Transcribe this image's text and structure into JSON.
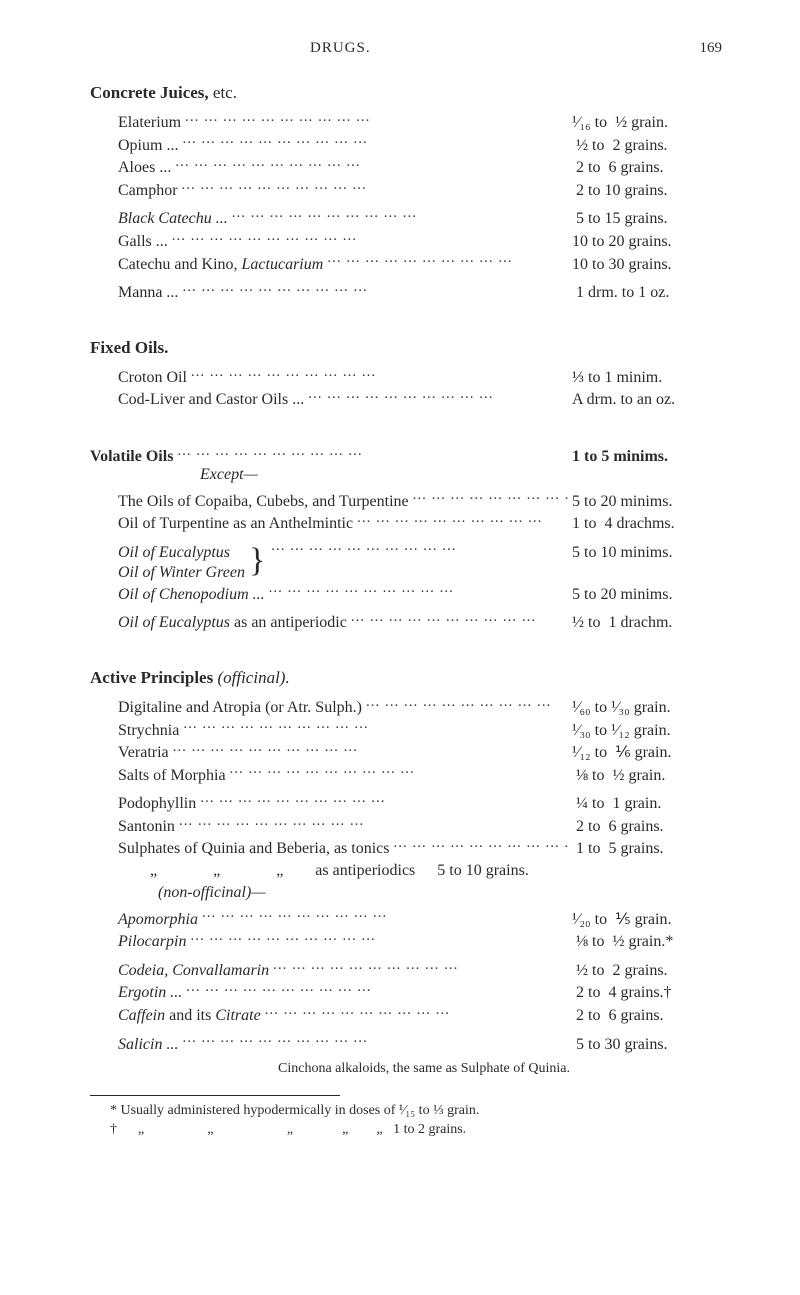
{
  "header": {
    "title": "DRUGS.",
    "page_no": "169"
  },
  "s1": {
    "head_bold": "Concrete Juices,",
    "head_rest": " etc.",
    "r1": {
      "l": "Elaterium",
      "d": "¹⁄₁₆ to  ½ grain."
    },
    "r2": {
      "l": "Opium ...",
      "d": " ½ to  2 grains."
    },
    "r3": {
      "l": "Aloes ...",
      "d": " 2 to  6 grains."
    },
    "r4": {
      "l": "Camphor",
      "d": " 2 to 10 grains."
    },
    "r5": {
      "l": "Black Catechu ...",
      "d": " 5 to 15 grains."
    },
    "r6": {
      "l": "Galls ...",
      "d": "10 to 20 grains."
    },
    "r7": {
      "l": "Catechu and Kino, Lactucarium",
      "d": "10 to 30 grains."
    },
    "r8": {
      "l": "Manna ...",
      "d": " 1 drm. to 1 oz."
    }
  },
  "s2": {
    "head": "Fixed Oils.",
    "r1": {
      "l": "Croton Oil",
      "d": "⅓ to 1 minim."
    },
    "r2": {
      "l": "Cod-Liver and Castor Oils ...",
      "d": "A drm. to an oz."
    }
  },
  "s3": {
    "head_bold": "Volatile Oils",
    "head_dose": "1 to 5 minims.",
    "except": "Except—",
    "r1": {
      "l": "The Oils of Copaiba, Cubebs, and Turpentine",
      "d": "5 to 20 minims."
    },
    "r2": {
      "l": "Oil of Turpentine as an Anthelmintic",
      "d": "1 to  4 drachms."
    },
    "brace1": "Oil of Eucalyptus",
    "brace2": "Oil of Winter Green",
    "brace_dose": "5 to 10 minims.",
    "r3": {
      "l": "Oil of Chenopodium ...",
      "d": "5 to 20 minims."
    },
    "r4": {
      "l": "Oil of Eucalyptus as an antiperiodic",
      "d": "½ to  1 drachm."
    }
  },
  "s4": {
    "head_bold": "Active Principles",
    "head_rest": " (officinal).",
    "r1": {
      "l": "Digitaline and Atropia (or Atr. Sulph.)",
      "d": "¹⁄₆₀ to ¹⁄₃₀ grain."
    },
    "r2": {
      "l": "Strychnia",
      "d": "¹⁄₃₀ to ¹⁄₁₂ grain."
    },
    "r3": {
      "l": "Veratria",
      "d": "¹⁄₁₂ to  ⅙ grain."
    },
    "r4": {
      "l": "Salts of Morphia",
      "d": " ⅛ to  ½ grain."
    },
    "r5": {
      "l": "Podophyllin",
      "d": " ¼ to  1 grain."
    },
    "r6": {
      "l": "Santonin",
      "d": " 2 to  6 grains."
    },
    "r7": {
      "l": "Sulphates of Quinia and Beberia, as tonics",
      "d": " 1 to  5 grains."
    },
    "r8": {
      "l": "        „              „              „        as antiperiodics",
      "d": " 5 to 10 grains."
    },
    "nonoff": "(non-officinal)—",
    "r9": {
      "l": "Apomorphia",
      "d": "¹⁄₂₀ to  ⅕ grain."
    },
    "r10": {
      "l": "Pilocarpin",
      "d": " ⅛ to  ½ grain.*"
    },
    "r11": {
      "l": "Codeia, Convallamarin",
      "d": " ½ to  2 grains."
    },
    "r12": {
      "l": "Ergotin ...",
      "d": " 2 to  4 grains.†"
    },
    "r13": {
      "l": "Caffein and its Citrate",
      "d": " 2 to  6 grains."
    },
    "r14": {
      "l": "Salicin ...",
      "d": " 5 to 30 grains."
    },
    "note": "Cinchona alkaloids, the same as Sulphate of Quinia."
  },
  "foot": {
    "f1": "* Usually administered hypodermically in doses of ¹⁄₁₅ to ⅓ grain.",
    "f2": "†      „                  „                     „              „        „   1 to 2 grains."
  }
}
